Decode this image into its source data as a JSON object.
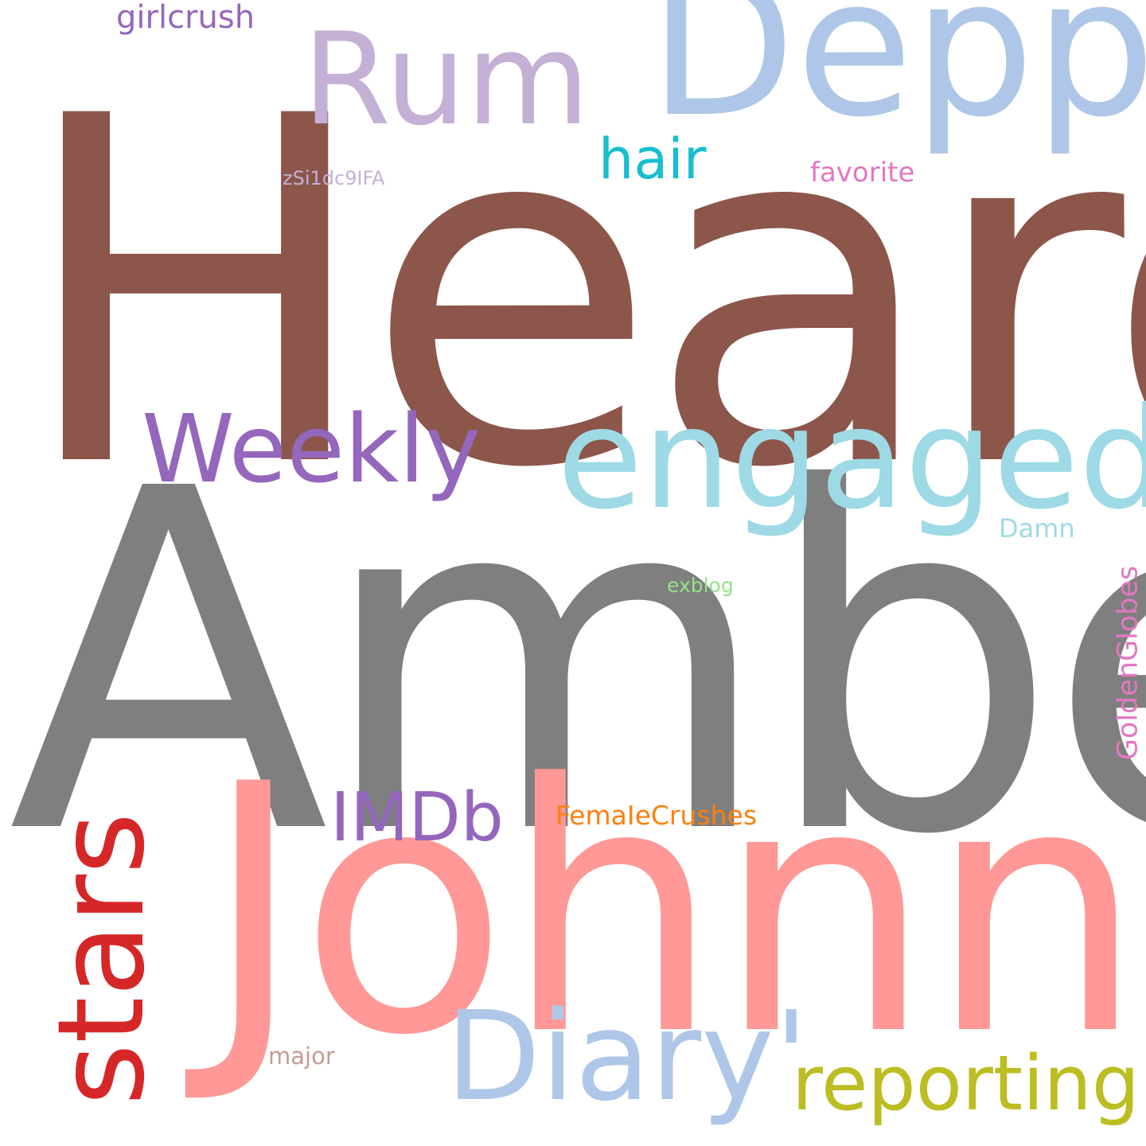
{
  "words": {
    "heard": {
      "text": "Heard",
      "color": "#8c564b"
    },
    "amber": {
      "text": "Amber",
      "color": "#7f7f7f"
    },
    "johnny": {
      "text": "Johnny",
      "color": "#ff9896"
    },
    "depp": {
      "text": "Depp",
      "color": "#aec7e8"
    },
    "rum": {
      "text": "Rum",
      "color": "#c5b0d5"
    },
    "engaged": {
      "text": "engaged",
      "color": "#9edae5"
    },
    "weekly": {
      "text": "Weekly",
      "color": "#9467bd"
    },
    "stars": {
      "text": "stars",
      "color": "#d62728"
    },
    "diary": {
      "text": "Diary'",
      "color": "#aec7e8"
    },
    "reporting": {
      "text": "reporting",
      "color": "#bcbd22"
    },
    "imdb": {
      "text": "IMDb",
      "color": "#9467bd"
    },
    "hair": {
      "text": "hair",
      "color": "#17becf"
    },
    "girlcrush": {
      "text": "girlcrush",
      "color": "#9467bd"
    },
    "favorite": {
      "text": "favorite",
      "color": "#e377c2"
    },
    "zsi": {
      "text": "zSi1dc9IFA",
      "color": "#c5b0d5"
    },
    "damn": {
      "text": "Damn",
      "color": "#9edae5"
    },
    "exblog": {
      "text": "exblog",
      "color": "#98df8a"
    },
    "femalecrushes": {
      "text": "FemaIeCrushes",
      "color": "#ff7f0e"
    },
    "major": {
      "text": "major",
      "color": "#c49c94"
    },
    "goldenglobes": {
      "text": "GoldenGlobes",
      "color": "#e377c2"
    }
  }
}
